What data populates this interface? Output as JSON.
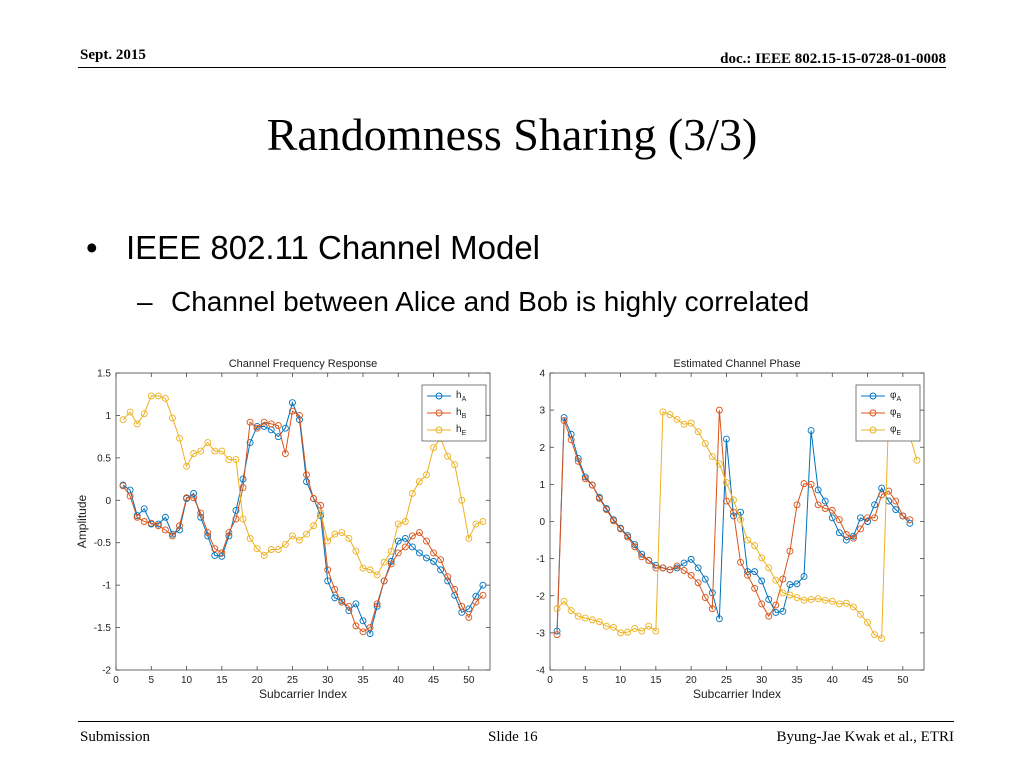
{
  "header": {
    "date": "Sept. 2015",
    "doc": "doc.: IEEE 802.15-15-0728-01-0008"
  },
  "title": "Randomness Sharing (3/3)",
  "bullets": {
    "level1": {
      "marker": "•",
      "text": "IEEE 802.11 Channel Model"
    },
    "level2": {
      "marker": "–",
      "text": "Channel between Alice and Bob is highly correlated"
    }
  },
  "footer": {
    "left": "Submission",
    "center": "Slide 16",
    "right": "Byung-Jae Kwak et al., ETRI"
  },
  "colors": {
    "A": "#0072BD",
    "B": "#D95319",
    "E": "#EDB120"
  },
  "chart_data": [
    {
      "type": "line",
      "title": "Channel Frequency Response",
      "xlabel": "Subcarrier Index",
      "ylabel": "Amplitude",
      "xlim": [
        0,
        53
      ],
      "ylim": [
        -2,
        1.5
      ],
      "xticks": [
        0,
        5,
        10,
        15,
        20,
        25,
        30,
        35,
        40,
        45,
        50
      ],
      "yticks": [
        -2,
        -1.5,
        -1,
        -0.5,
        0,
        0.5,
        1,
        1.5
      ],
      "ytick_labels": [
        "-2",
        "-1.5",
        "-1",
        "-0.5",
        "0",
        "0.5",
        "1",
        "1.5"
      ],
      "legend": "top-right",
      "series": [
        {
          "key": "A",
          "name": "h",
          "sub": "A",
          "values": [
            0.18,
            0.12,
            -0.18,
            -0.1,
            -0.28,
            -0.28,
            -0.2,
            -0.4,
            -0.35,
            0.02,
            0.08,
            -0.2,
            -0.42,
            -0.65,
            -0.66,
            -0.42,
            -0.12,
            0.25,
            0.68,
            0.87,
            0.87,
            0.83,
            0.75,
            0.85,
            1.15,
            0.95,
            0.22,
            0.02,
            -0.18,
            -0.95,
            -1.15,
            -1.18,
            -1.3,
            -1.22,
            -1.42,
            -1.57,
            -1.25,
            -0.95,
            -0.72,
            -0.48,
            -0.45,
            -0.55,
            -0.62,
            -0.68,
            -0.72,
            -0.82,
            -0.95,
            -1.12,
            -1.32,
            -1.28,
            -1.13,
            -1.0
          ]
        },
        {
          "key": "B",
          "name": "h",
          "sub": "B",
          "values": [
            0.17,
            0.05,
            -0.2,
            -0.25,
            -0.27,
            -0.3,
            -0.35,
            -0.42,
            -0.3,
            0.03,
            0.03,
            -0.15,
            -0.38,
            -0.57,
            -0.62,
            -0.38,
            -0.22,
            0.15,
            0.92,
            0.85,
            0.92,
            0.9,
            0.88,
            0.55,
            1.05,
            1.0,
            0.3,
            0.02,
            -0.06,
            -0.82,
            -1.05,
            -1.2,
            -1.25,
            -1.48,
            -1.55,
            -1.5,
            -1.22,
            -0.95,
            -0.75,
            -0.62,
            -0.55,
            -0.42,
            -0.38,
            -0.48,
            -0.62,
            -0.7,
            -0.9,
            -1.05,
            -1.25,
            -1.38,
            -1.2,
            -1.12
          ]
        },
        {
          "key": "E",
          "name": "h",
          "sub": "E",
          "values": [
            0.95,
            1.04,
            0.9,
            1.02,
            1.23,
            1.23,
            1.2,
            0.97,
            0.73,
            0.4,
            0.55,
            0.58,
            0.68,
            0.58,
            0.58,
            0.48,
            0.48,
            -0.22,
            -0.45,
            -0.57,
            -0.65,
            -0.58,
            -0.58,
            -0.52,
            -0.42,
            -0.47,
            -0.4,
            -0.3,
            -0.15,
            -0.48,
            -0.4,
            -0.38,
            -0.45,
            -0.6,
            -0.8,
            -0.82,
            -0.88,
            -0.73,
            -0.6,
            -0.28,
            -0.25,
            0.08,
            0.22,
            0.3,
            0.62,
            0.73,
            0.52,
            0.42,
            0.0,
            -0.45,
            -0.28,
            -0.25
          ]
        }
      ]
    },
    {
      "type": "line",
      "title": "Estimated Channel Phase",
      "xlabel": "Subcarrier Index",
      "ylabel": "",
      "xlim": [
        0,
        53
      ],
      "ylim": [
        -4,
        4
      ],
      "xticks": [
        0,
        5,
        10,
        15,
        20,
        25,
        30,
        35,
        40,
        45,
        50
      ],
      "yticks": [
        -4,
        -3,
        -2,
        -1,
        0,
        1,
        2,
        3,
        4
      ],
      "ytick_labels": [
        "-4",
        "-3",
        "-2",
        "-1",
        "0",
        "1",
        "2",
        "3",
        "4"
      ],
      "legend": "top-right",
      "series": [
        {
          "key": "A",
          "name": "φ",
          "sub": "A",
          "values": [
            -2.95,
            2.8,
            2.35,
            1.7,
            1.2,
            0.98,
            0.65,
            0.35,
            0.05,
            -0.18,
            -0.38,
            -0.62,
            -0.88,
            -1.05,
            -1.18,
            -1.25,
            -1.3,
            -1.25,
            -1.12,
            -1.02,
            -1.25,
            -1.55,
            -1.92,
            -2.62,
            2.22,
            0.15,
            0.25,
            -1.35,
            -1.35,
            -1.6,
            -2.1,
            -2.45,
            -2.42,
            -1.7,
            -1.68,
            -1.48,
            2.45,
            0.85,
            0.55,
            0.1,
            -0.3,
            -0.5,
            -0.4,
            0.1,
            0.0,
            0.45,
            0.9,
            0.55,
            0.32,
            0.15,
            -0.05
          ]
        },
        {
          "key": "B",
          "name": "φ",
          "sub": "B",
          "values": [
            -3.05,
            2.72,
            2.2,
            1.62,
            1.15,
            0.98,
            0.62,
            0.32,
            0.02,
            -0.2,
            -0.42,
            -0.68,
            -0.95,
            -1.05,
            -1.25,
            -1.25,
            -1.3,
            -1.2,
            -1.32,
            -1.45,
            -1.65,
            -2.05,
            -2.35,
            3.0,
            0.55,
            0.25,
            -1.1,
            -1.45,
            -1.8,
            -2.22,
            -2.55,
            -2.25,
            -1.55,
            -0.8,
            0.45,
            1.02,
            1.0,
            0.45,
            0.35,
            0.3,
            0.05,
            -0.35,
            -0.45,
            -0.2,
            0.1,
            0.1,
            0.72,
            0.82,
            0.55,
            0.15,
            0.05
          ]
        },
        {
          "key": "E",
          "name": "φ",
          "sub": "E",
          "values": [
            -2.35,
            -2.15,
            -2.4,
            -2.55,
            -2.6,
            -2.65,
            -2.7,
            -2.82,
            -2.85,
            -3.0,
            -2.98,
            -2.88,
            -2.95,
            -2.82,
            -2.95,
            2.95,
            2.88,
            2.75,
            2.62,
            2.65,
            2.42,
            2.1,
            1.75,
            1.55,
            1.05,
            0.58,
            0.05,
            -0.5,
            -0.65,
            -0.98,
            -1.25,
            -1.58,
            -1.92,
            -1.98,
            -2.05,
            -2.12,
            -2.1,
            -2.08,
            -2.12,
            -2.15,
            -2.22,
            -2.2,
            -2.3,
            -2.5,
            -2.72,
            -3.05,
            -3.15,
            2.95,
            2.75,
            2.45,
            2.3,
            1.65
          ]
        }
      ]
    }
  ]
}
